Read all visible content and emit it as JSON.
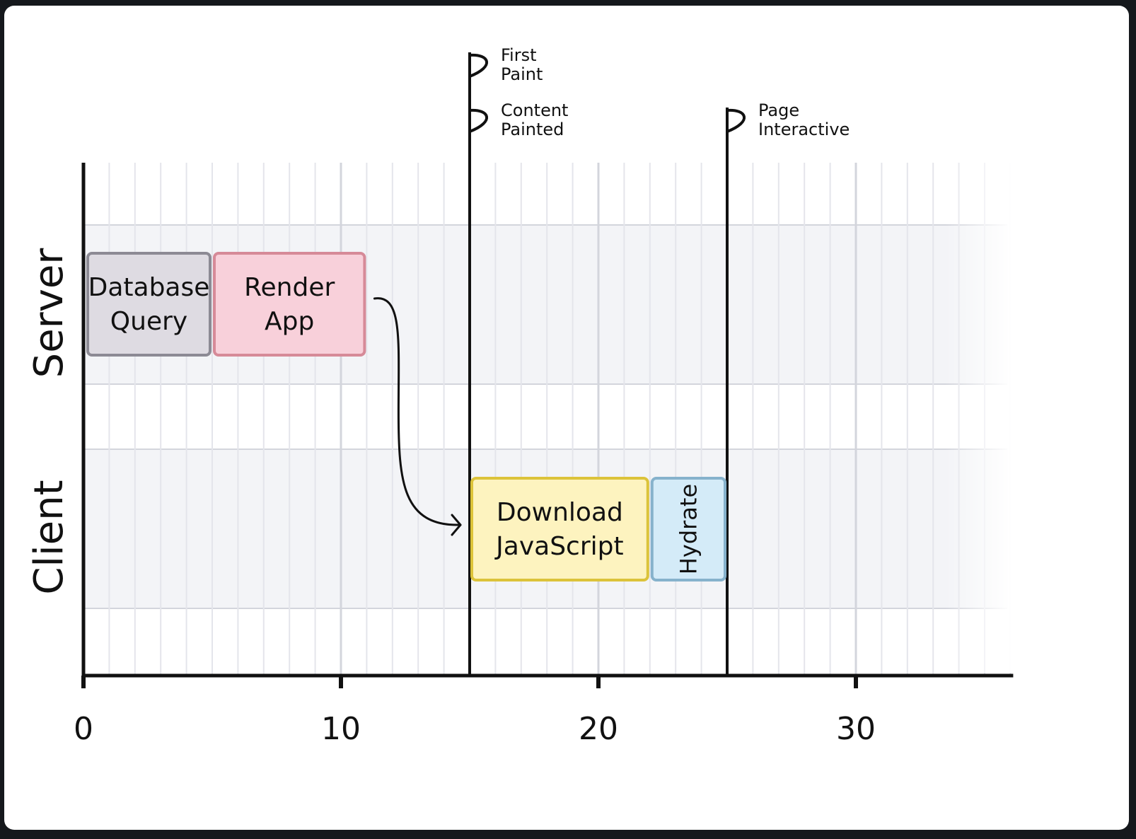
{
  "lanes": [
    {
      "key": "server",
      "label": "Server"
    },
    {
      "key": "client",
      "label": "Client"
    }
  ],
  "axis": {
    "min": 0,
    "max": 36,
    "ticks": [
      {
        "value": 0,
        "label": "0"
      },
      {
        "value": 10,
        "label": "10"
      },
      {
        "value": 20,
        "label": "20"
      },
      {
        "value": 30,
        "label": "30"
      }
    ]
  },
  "tasks": [
    {
      "key": "database-query",
      "lane": "server",
      "start": 0,
      "end": 5,
      "lines": [
        "Database",
        "Query"
      ],
      "fill": "#dedbe2",
      "stroke": "#8c8a94"
    },
    {
      "key": "render-app",
      "lane": "server",
      "start": 5,
      "end": 11,
      "lines": [
        "Render",
        "App"
      ],
      "fill": "#f8d0da",
      "stroke": "#d68a98"
    },
    {
      "key": "download-javascript",
      "lane": "client",
      "start": 15,
      "end": 22,
      "lines": [
        "Download",
        "JavaScript"
      ],
      "fill": "#fdf3bf",
      "stroke": "#dcc33a"
    },
    {
      "key": "hydrate",
      "lane": "client",
      "start": 22,
      "end": 25,
      "lines": [
        "Hydrate"
      ],
      "fill": "#d4ebf8",
      "stroke": "#86b2cc",
      "vertical": true
    }
  ],
  "milestones": [
    {
      "key": "first-paint",
      "at": 15,
      "lines": [
        "First",
        "Paint"
      ]
    },
    {
      "key": "content-painted",
      "at": 15,
      "lines": [
        "Content",
        "Painted"
      ]
    },
    {
      "key": "page-interactive",
      "at": 25,
      "lines": [
        "Page",
        "Interactive"
      ]
    }
  ],
  "arrow": {
    "from": "render-app",
    "to": "download-javascript"
  },
  "colors": {
    "background": "#15181c",
    "card": "#ffffff",
    "lane_band": "#f3f4f7",
    "grid_minor": "#e4e5eb",
    "grid_major": "#d3d5dc",
    "ink": "#111111"
  }
}
